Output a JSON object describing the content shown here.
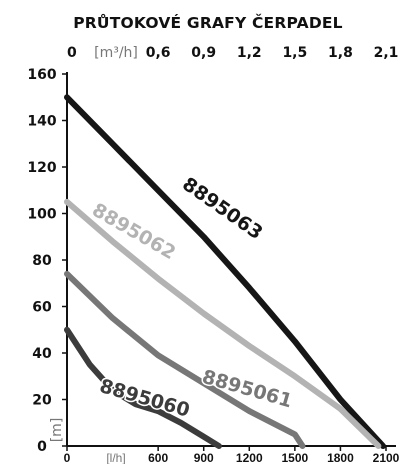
{
  "chart_data": {
    "type": "line",
    "title": "PRŮTOKOVÉ GRAFY ČERPADEL",
    "xlabel_top": "[m³/h]",
    "xlabel_bottom": "[l/h]",
    "ylabel": "[m]",
    "xlim_top": [
      0,
      2.1
    ],
    "xlim_bottom": [
      0,
      2100
    ],
    "ylim": [
      0,
      160
    ],
    "x_ticks_top": [
      "0",
      "0,6",
      "0,9",
      "1,2",
      "1,5",
      "1,8",
      "2,1"
    ],
    "x_ticks_top_values": [
      0,
      0.6,
      0.9,
      1.2,
      1.5,
      1.8,
      2.1
    ],
    "x_ticks_bottom": [
      "0",
      "600",
      "900",
      "1200",
      "1500",
      "1800",
      "2100"
    ],
    "x_ticks_bottom_values": [
      0,
      600,
      900,
      1200,
      1500,
      1800,
      2100
    ],
    "y_ticks": [
      "0",
      "20",
      "40",
      "60",
      "80",
      "100",
      "120",
      "140",
      "160"
    ],
    "y_ticks_values": [
      0,
      20,
      40,
      60,
      80,
      100,
      120,
      140,
      160
    ],
    "grid": false,
    "series": [
      {
        "name": "8895063",
        "color": "#161616",
        "points": [
          [
            0,
            150
          ],
          [
            300,
            130
          ],
          [
            600,
            110
          ],
          [
            900,
            90
          ],
          [
            1200,
            68
          ],
          [
            1500,
            45
          ],
          [
            1800,
            20
          ],
          [
            2080,
            0
          ]
        ]
      },
      {
        "name": "8895062",
        "color": "#b3b3b3",
        "points": [
          [
            0,
            105
          ],
          [
            300,
            88
          ],
          [
            600,
            72
          ],
          [
            900,
            57
          ],
          [
            1200,
            43
          ],
          [
            1500,
            30
          ],
          [
            1800,
            16
          ],
          [
            2050,
            0
          ]
        ]
      },
      {
        "name": "8895061",
        "color": "#777777",
        "points": [
          [
            0,
            74
          ],
          [
            300,
            55
          ],
          [
            600,
            39
          ],
          [
            900,
            27
          ],
          [
            1200,
            15
          ],
          [
            1500,
            5
          ],
          [
            1550,
            0
          ]
        ]
      },
      {
        "name": "8895060",
        "color": "#3c3c3c",
        "points": [
          [
            0,
            50
          ],
          [
            150,
            35
          ],
          [
            300,
            24
          ],
          [
            450,
            18
          ],
          [
            600,
            15
          ],
          [
            750,
            10
          ],
          [
            900,
            4
          ],
          [
            1000,
            0
          ]
        ]
      }
    ]
  }
}
